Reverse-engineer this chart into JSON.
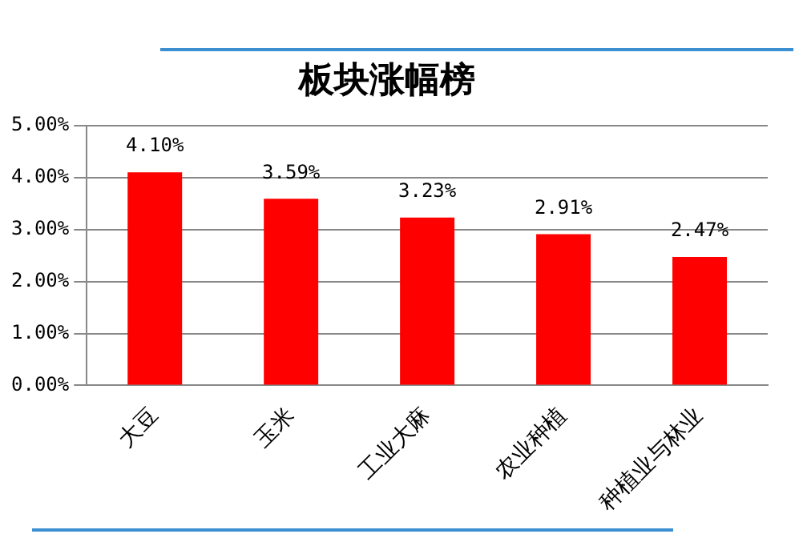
{
  "chart_data": {
    "type": "bar",
    "title": "板块涨幅榜",
    "categories": [
      "大豆",
      "玉米",
      "工业大麻",
      "农业种植",
      "种植业与林业"
    ],
    "values": [
      4.1,
      3.59,
      3.23,
      2.91,
      2.47
    ],
    "value_labels": [
      "4.10%",
      "3.59%",
      "3.23%",
      "2.91%",
      "2.47%"
    ],
    "color": "#ff0000",
    "ylim": [
      0,
      5
    ],
    "yticks": [
      {
        "value": 0,
        "label": "0.00%"
      },
      {
        "value": 1,
        "label": "1.00%"
      },
      {
        "value": 2,
        "label": "2.00%"
      },
      {
        "value": 3,
        "label": "3.00%"
      },
      {
        "value": 4,
        "label": "4.00%"
      },
      {
        "value": 5,
        "label": "5.00%"
      }
    ],
    "grid": "y",
    "legend": false
  }
}
